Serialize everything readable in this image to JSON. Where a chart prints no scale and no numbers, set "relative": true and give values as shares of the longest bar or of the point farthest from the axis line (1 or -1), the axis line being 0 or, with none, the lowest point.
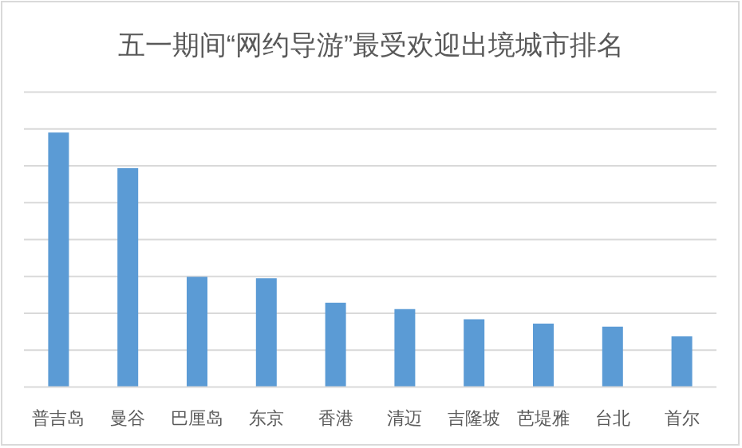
{
  "chart_data": {
    "type": "bar",
    "title": "五一期间“网约导游”最受欢迎出境城市排名",
    "categories": [
      "普吉岛",
      "曼谷",
      "巴厘岛",
      "东京",
      "香港",
      "清迈",
      "吉隆坡",
      "芭堤雅",
      "台北",
      "首尔"
    ],
    "values": [
      1,
      0.86,
      0.433,
      0.427,
      0.331,
      0.306,
      0.266,
      0.249,
      0.237,
      0.199
    ],
    "color": "#5b9bd5",
    "relative": true,
    "grid": "y"
  }
}
